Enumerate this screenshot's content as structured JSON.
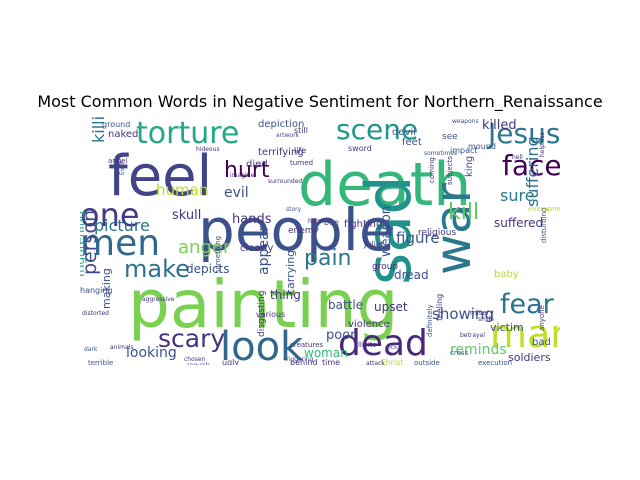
{
  "chart_data": {
    "type": "wordcloud",
    "title": "Most Common Words in Negative Sentiment for Northern_Renaissance",
    "background": "#ffffff",
    "colormap": "viridis",
    "words": [
      {
        "text": "painting",
        "weight": 100,
        "color": "#7ad151"
      },
      {
        "text": "death",
        "weight": 92,
        "color": "#35b779"
      },
      {
        "text": "sad",
        "weight": 88,
        "color": "#21918c"
      },
      {
        "text": "people",
        "weight": 85,
        "color": "#3b528b"
      },
      {
        "text": "feel",
        "weight": 78,
        "color": "#414487"
      },
      {
        "text": "war",
        "weight": 70,
        "color": "#2a788e"
      },
      {
        "text": "look",
        "weight": 55,
        "color": "#31688e"
      },
      {
        "text": "men",
        "weight": 50,
        "color": "#31688e"
      },
      {
        "text": "dead",
        "weight": 48,
        "color": "#482878"
      },
      {
        "text": "man",
        "weight": 47,
        "color": "#bddf26"
      },
      {
        "text": "one",
        "weight": 45,
        "color": "#443983"
      },
      {
        "text": "torture",
        "weight": 44,
        "color": "#22a884"
      },
      {
        "text": "Jesus",
        "weight": 40,
        "color": "#2a788e"
      },
      {
        "text": "scene",
        "weight": 38,
        "color": "#1f988b"
      },
      {
        "text": "face",
        "weight": 37,
        "color": "#440154"
      },
      {
        "text": "fear",
        "weight": 36,
        "color": "#2c728e"
      },
      {
        "text": "make",
        "weight": 33,
        "color": "#2c728e"
      },
      {
        "text": "scary",
        "weight": 32,
        "color": "#46337e"
      },
      {
        "text": "hurt",
        "weight": 30,
        "color": "#440154"
      },
      {
        "text": "kill",
        "weight": 30,
        "color": "#5ec962"
      },
      {
        "text": "pain",
        "weight": 28,
        "color": "#2a788e"
      },
      {
        "text": "person",
        "weight": 27,
        "color": "#3e4989"
      },
      {
        "text": "suffering",
        "weight": 26,
        "color": "#2e6e8e"
      },
      {
        "text": "anger",
        "weight": 25,
        "color": "#7ad151"
      },
      {
        "text": "picture",
        "weight": 24,
        "color": "#2c728e"
      },
      {
        "text": "killing",
        "weight": 24,
        "color": "#2a788e"
      },
      {
        "text": "sure",
        "weight": 22,
        "color": "#2a788e"
      },
      {
        "text": "figure",
        "weight": 21,
        "color": "#3b528b"
      },
      {
        "text": "human",
        "weight": 20,
        "color": "#b5de2b"
      },
      {
        "text": "appear",
        "weight": 20,
        "color": "#3b528b"
      },
      {
        "text": "frightening",
        "weight": 19,
        "color": "#22a884"
      },
      {
        "text": "evil",
        "weight": 18,
        "color": "#3b528b"
      },
      {
        "text": "looking",
        "weight": 18,
        "color": "#3b528b"
      },
      {
        "text": "showing",
        "weight": 18,
        "color": "#3b528b"
      },
      {
        "text": "reminds",
        "weight": 17,
        "color": "#5ec962"
      },
      {
        "text": "weapon",
        "weight": 17,
        "color": "#3b528b"
      },
      {
        "text": "killed",
        "weight": 17,
        "color": "#46337e"
      },
      {
        "text": "hands",
        "weight": 16,
        "color": "#46337e"
      },
      {
        "text": "skull",
        "weight": 15,
        "color": "#46337e"
      },
      {
        "text": "poor",
        "weight": 15,
        "color": "#3b528b"
      },
      {
        "text": "woman",
        "weight": 14,
        "color": "#35b779"
      },
      {
        "text": "battle",
        "weight": 14,
        "color": "#3b528b"
      },
      {
        "text": "dread",
        "weight": 14,
        "color": "#3b528b"
      },
      {
        "text": "suffered",
        "weight": 14,
        "color": "#46337e"
      },
      {
        "text": "depicts",
        "weight": 13,
        "color": "#3b528b"
      },
      {
        "text": "thing",
        "weight": 13,
        "color": "#46337e"
      },
      {
        "text": "soldiers",
        "weight": 13,
        "color": "#46337e"
      },
      {
        "text": "victim",
        "weight": 13,
        "color": "#3b528b"
      },
      {
        "text": "upset",
        "weight": 13,
        "color": "#46337e"
      },
      {
        "text": "carrying",
        "weight": 12,
        "color": "#3b528b"
      },
      {
        "text": "making",
        "weight": 12,
        "color": "#3b528b"
      },
      {
        "text": "naked",
        "weight": 12,
        "color": "#46337e"
      },
      {
        "text": "depiction",
        "weight": 12,
        "color": "#3b528b"
      },
      {
        "text": "terrifying",
        "weight": 12,
        "color": "#46337e"
      },
      {
        "text": "fighting",
        "weight": 12,
        "color": "#46337e"
      },
      {
        "text": "feet",
        "weight": 11,
        "color": "#3b528b"
      },
      {
        "text": "king",
        "weight": 11,
        "color": "#3b528b"
      },
      {
        "text": "died",
        "weight": 11,
        "color": "#46337e"
      },
      {
        "text": "devil",
        "weight": 11,
        "color": "#3b528b"
      },
      {
        "text": "bad",
        "weight": 11,
        "color": "#3b528b"
      },
      {
        "text": "baby",
        "weight": 11,
        "color": "#b5de2b"
      },
      {
        "text": "violence",
        "weight": 11,
        "color": "#46337e"
      },
      {
        "text": "religious",
        "weight": 11,
        "color": "#46337e"
      },
      {
        "text": "clearly",
        "weight": 11,
        "color": "#46337e"
      },
      {
        "text": "disgusting",
        "weight": 11,
        "color": "#46337e"
      },
      {
        "text": "hanging",
        "weight": 10,
        "color": "#3b528b"
      },
      {
        "text": "group",
        "weight": 10,
        "color": "#46337e"
      },
      {
        "text": "Juliet",
        "weight": 10,
        "color": "#46337e"
      },
      {
        "text": "enemy",
        "weight": 10,
        "color": "#46337e"
      },
      {
        "text": "behind",
        "weight": 10,
        "color": "#46337e"
      },
      {
        "text": "time",
        "weight": 10,
        "color": "#46337e"
      },
      {
        "text": "Christ",
        "weight": 10,
        "color": "#b5de2b"
      },
      {
        "text": "outside",
        "weight": 10,
        "color": "#3b528b"
      },
      {
        "text": "see",
        "weight": 10,
        "color": "#3b528b"
      },
      {
        "text": "disturbing",
        "weight": 10,
        "color": "#3b528b"
      },
      {
        "text": "ugly",
        "weight": 10,
        "color": "#46337e"
      },
      {
        "text": "execution",
        "weight": 10,
        "color": "#3b528b"
      },
      {
        "text": "terrible",
        "weight": 9,
        "color": "#3b528b"
      },
      {
        "text": "various",
        "weight": 9,
        "color": "#46337e"
      },
      {
        "text": "something",
        "weight": 9,
        "color": "#3b528b"
      },
      {
        "text": "mound",
        "weight": 9,
        "color": "#3b528b"
      },
      {
        "text": "impact",
        "weight": 9,
        "color": "#3b528b"
      },
      {
        "text": "sword",
        "weight": 9,
        "color": "#46337e"
      },
      {
        "text": "feeling",
        "weight": 9,
        "color": "#46337e"
      },
      {
        "text": "bee",
        "weight": 9,
        "color": "#3b528b"
      },
      {
        "text": "turned",
        "weight": 8,
        "color": "#46337e"
      },
      {
        "text": "life",
        "weight": 8,
        "color": "#46337e"
      },
      {
        "text": "still",
        "weight": 8,
        "color": "#46337e"
      },
      {
        "text": "ground",
        "weight": 8,
        "color": "#3b528b"
      },
      {
        "text": "angel",
        "weight": 8,
        "color": "#46337e"
      },
      {
        "text": "coming",
        "weight": 8,
        "color": "#46337e"
      },
      {
        "text": "subjects",
        "weight": 8,
        "color": "#46337e"
      },
      {
        "text": "misery",
        "weight": 8,
        "color": "#46337e"
      },
      {
        "text": "definitely",
        "weight": 8,
        "color": "#3b528b"
      },
      {
        "text": "cross",
        "weight": 8,
        "color": "#3b528b"
      },
      {
        "text": "anyone",
        "weight": 8,
        "color": "#46337e"
      },
      {
        "text": "everyone",
        "weight": 8,
        "color": "#b5de2b"
      },
      {
        "text": "creatures",
        "weight": 8,
        "color": "#46337e"
      },
      {
        "text": "attack",
        "weight": 7,
        "color": "#46337e"
      },
      {
        "text": "triggering",
        "weight": 7,
        "color": "#3b528b"
      },
      {
        "text": "illicits",
        "weight": 7,
        "color": "#46337e"
      },
      {
        "text": "distorted",
        "weight": 7,
        "color": "#46337e"
      },
      {
        "text": "aggressive",
        "weight": 7,
        "color": "#46337e"
      },
      {
        "text": "animals",
        "weight": 7,
        "color": "#46337e"
      },
      {
        "text": "hell",
        "weight": 7,
        "color": "#46337e"
      },
      {
        "text": "smile",
        "weight": 7,
        "color": "#46337e"
      },
      {
        "text": "betrayal",
        "weight": 7,
        "color": "#46337e"
      },
      {
        "text": "helpless",
        "weight": 7,
        "color": "#46337e"
      },
      {
        "text": "Even",
        "weight": 7,
        "color": "#3b528b"
      },
      {
        "text": "story",
        "weight": 7,
        "color": "#3b528b"
      },
      {
        "text": "dark",
        "weight": 7,
        "color": "#3b528b"
      },
      {
        "text": "chosen",
        "weight": 7,
        "color": "#46337e"
      },
      {
        "text": "harmful",
        "weight": 7,
        "color": "#46337e"
      },
      {
        "text": "sick",
        "weight": 7,
        "color": "#3b528b"
      },
      {
        "text": "artwork",
        "weight": 6,
        "color": "#3b528b"
      },
      {
        "text": "anguish",
        "weight": 6,
        "color": "#3b528b"
      },
      {
        "text": "surrounded",
        "weight": 6,
        "color": "#46337e"
      },
      {
        "text": "sometimes",
        "weight": 6,
        "color": "#3b528b"
      },
      {
        "text": "imagine",
        "weight": 6,
        "color": "#46337e"
      },
      {
        "text": "weapons",
        "weight": 6,
        "color": "#3b528b"
      },
      {
        "text": "hideous",
        "weight": 6,
        "color": "#46337e"
      }
    ]
  }
}
